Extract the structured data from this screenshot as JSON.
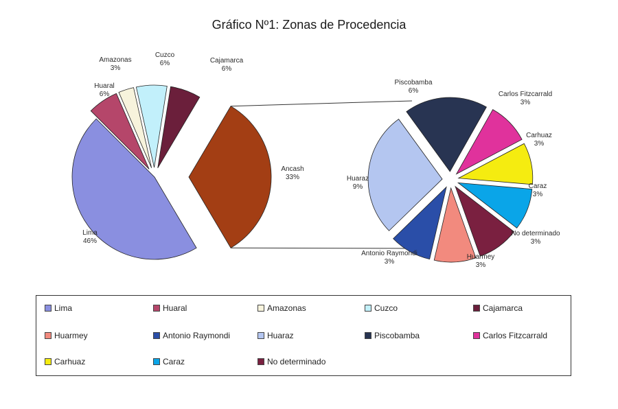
{
  "chart_data": {
    "type": "pie",
    "title": "Gráfico Nº1: Zonas de Procedencia",
    "main_pie": {
      "slices": [
        {
          "name": "Lima",
          "value": 46,
          "label": "46%",
          "color": "#8a8fe0"
        },
        {
          "name": "Huaral",
          "value": 6,
          "label": "6%",
          "color": "#b5466a"
        },
        {
          "name": "Amazonas",
          "value": 3,
          "label": "3%",
          "color": "#f7f3dc"
        },
        {
          "name": "Cuzco",
          "value": 6,
          "label": "6%",
          "color": "#c2f0fb"
        },
        {
          "name": "Cajamarca",
          "value": 6,
          "label": "6%",
          "color": "#6b1f3b"
        },
        {
          "name": "Ancash",
          "value": 33,
          "label": "33%",
          "color": "#a33e14"
        }
      ]
    },
    "breakdown_pie": {
      "parent": "Ancash",
      "slices": [
        {
          "name": "Piscobamba",
          "value": 6,
          "label": "6%",
          "color": "#283452"
        },
        {
          "name": "Carlos Fitzcarrald",
          "value": 3,
          "label": "3%",
          "color": "#e0329c"
        },
        {
          "name": "Carhuaz",
          "value": 3,
          "label": "3%",
          "color": "#f5ec10"
        },
        {
          "name": "Caraz",
          "value": 3,
          "label": "3%",
          "color": "#0aa5e8"
        },
        {
          "name": "No determinado",
          "value": 3,
          "label": "3%",
          "color": "#7a2040"
        },
        {
          "name": "Huarmey",
          "value": 3,
          "label": "3%",
          "color": "#f28a7e"
        },
        {
          "name": "Antonio Raymondi",
          "value": 3,
          "label": "3%",
          "color": "#2a4ea8"
        },
        {
          "name": "Huaraz",
          "value": 9,
          "label": "9%",
          "color": "#b4c6f0"
        }
      ]
    },
    "legend": [
      {
        "name": "Lima",
        "color": "#8a8fe0"
      },
      {
        "name": "Huaral",
        "color": "#b5466a"
      },
      {
        "name": "Amazonas",
        "color": "#f7f3dc"
      },
      {
        "name": "Cuzco",
        "color": "#c2f0fb"
      },
      {
        "name": "Cajamarca",
        "color": "#6b1f3b"
      },
      {
        "name": "Huarmey",
        "color": "#f28a7e"
      },
      {
        "name": "Antonio Raymondi",
        "color": "#2a4ea8"
      },
      {
        "name": "Huaraz",
        "color": "#b4c6f0"
      },
      {
        "name": "Piscobamba",
        "color": "#283452"
      },
      {
        "name": "Carlos Fitzcarrald",
        "color": "#e0329c"
      },
      {
        "name": "Carhuaz",
        "color": "#f5ec10"
      },
      {
        "name": "Caraz",
        "color": "#0aa5e8"
      },
      {
        "name": "No determinado",
        "color": "#7a2040"
      }
    ],
    "legend_position": "bottom"
  }
}
